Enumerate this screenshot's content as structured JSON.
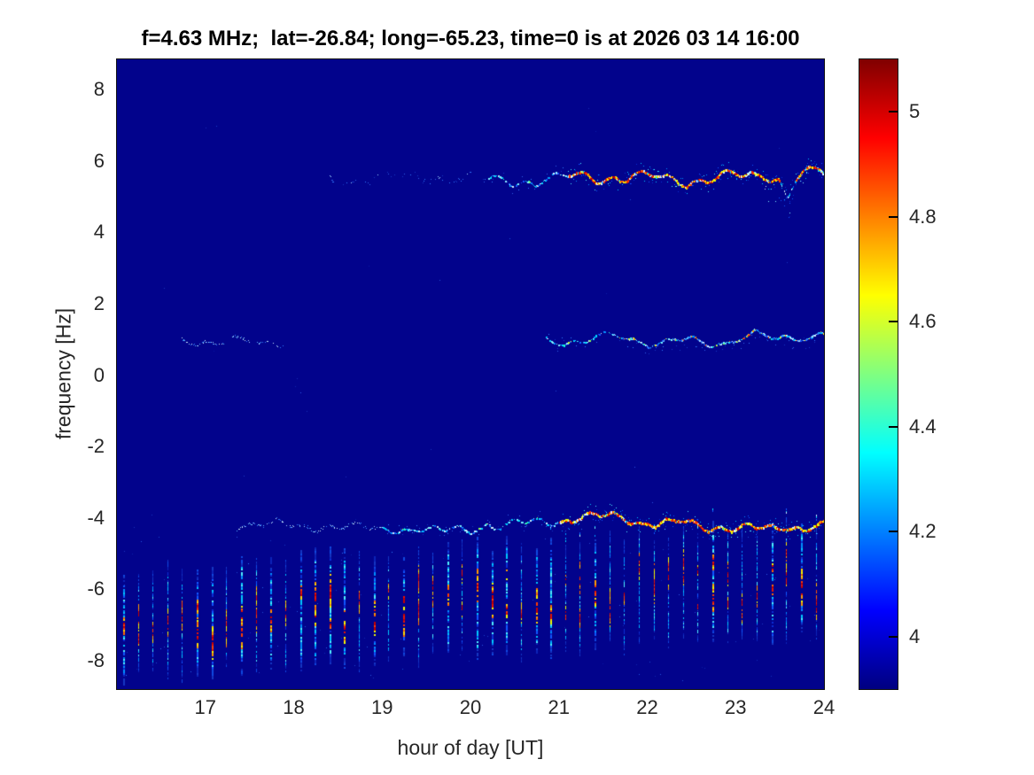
{
  "chart_data": {
    "type": "heatmap",
    "subtype": "doppler-spectrogram",
    "title": "f=4.63 MHz;  lat=-26.84; long=-65.23, time=0 is at 2026 03 14 16:00",
    "xlabel": "hour of day [UT]",
    "ylabel": "frequency [Hz]",
    "x_ticks": [
      17,
      18,
      19,
      20,
      21,
      22,
      23,
      24
    ],
    "y_ticks": [
      8,
      6,
      4,
      2,
      0,
      -2,
      -4,
      -6,
      -8
    ],
    "xlim": [
      16,
      24
    ],
    "ylim": [
      -8.83,
      8.83
    ],
    "grid": false,
    "colormap": "jet",
    "background_value": 3.9,
    "colorbar": {
      "ticks": [
        5,
        4.8,
        4.6,
        4.4,
        4.2,
        4
      ],
      "range": [
        3.9,
        5.1
      ],
      "position": "right"
    },
    "features": {
      "traces": [
        {
          "name": "upper sideband trace",
          "freq": 5.5,
          "start": 18.35,
          "end": 24,
          "a1": 0.13,
          "f1": 1.05,
          "a2": 0.08,
          "f2": 3.1,
          "phase": 0.8,
          "segments": [
            {
              "t0": 18.35,
              "t1": 20.2,
              "mode": "faint"
            },
            {
              "t0": 20.2,
              "t1": 21.1,
              "mode": "medium"
            },
            {
              "t0": 21.1,
              "t1": 24.0,
              "mode": "strong"
            }
          ],
          "dip": {
            "at": 23.58,
            "depth": 0.55,
            "width": 0.07
          }
        },
        {
          "name": "near-carrier trace",
          "freq": 0.93,
          "start": 16.73,
          "end": 24,
          "a1": 0.1,
          "f1": 1.2,
          "a2": 0.07,
          "f2": 2.9,
          "phase": 2.1,
          "segments": [
            {
              "t0": 16.73,
              "t1": 17.9,
              "mode": "faint2",
              "gaps": [
                [
                  17.22,
                  17.3
                ],
                [
                  17.5,
                  17.58
                ]
              ]
            },
            {
              "t0": 20.85,
              "t1": 21.6,
              "mode": "medium"
            },
            {
              "t0": 21.6,
              "t1": 24.0,
              "mode": "strongCool"
            }
          ]
        },
        {
          "name": "lower sideband trace",
          "freq": -4.2,
          "start": 17.35,
          "end": 24,
          "a1": 0.1,
          "f1": 1.1,
          "a2": 0.07,
          "f2": 3.4,
          "phase": 4.0,
          "segments": [
            {
              "t0": 17.35,
              "t1": 19.0,
              "mode": "faint2"
            },
            {
              "t0": 19.0,
              "t1": 21.0,
              "mode": "medium"
            },
            {
              "t0": 21.0,
              "t1": 24.0,
              "mode": "strong"
            }
          ]
        }
      ],
      "stripes": {
        "description": "periodic ~10-minute vertical speckle columns in lower band",
        "start": 16.07,
        "end": 24,
        "interval": 0.1667,
        "top_start": -5.45,
        "top_end": -4.1,
        "bottom_start": -8.55,
        "bottom_end": -7.35
      }
    }
  },
  "colors": {
    "figure_background": "#ffffff",
    "plot_background": "#02038c",
    "title_text": "#000000",
    "axis_text": "#262626",
    "axes_border": "#111111",
    "colorbar_gradient_bottom_to_top": [
      "#000080",
      "#0000ff",
      "#0080ff",
      "#00ffff",
      "#80ff80",
      "#ffff00",
      "#ff8000",
      "#ff0000",
      "#800000"
    ],
    "palettes": {
      "hot_core": [
        "#e81500",
        "#ff3d00",
        "#c60000"
      ],
      "hot_edge": [
        "#ff9a00",
        "#ffd900",
        "#f0ff00",
        "#ff6a00"
      ],
      "cool": [
        "#0b2fd4",
        "#1157ff",
        "#0090ff",
        "#00c8ff",
        "#4ff0ff"
      ],
      "dim": [
        "#0c23b8",
        "#1436c2",
        "#0f49e0"
      ],
      "dim2": [
        "#1436c2",
        "#2f5fe8",
        "#2f7bff"
      ],
      "soft": [
        "#2f7bff",
        "#58b6ff",
        "#9fd4ff",
        "#cfeeff"
      ],
      "bright": [
        "#1157ff",
        "#00a0ff",
        "#00d9ff",
        "#7df0ff",
        "#cfeeff"
      ],
      "mid": [
        "#2bffb0",
        "#8dff57",
        "#d6ff1e"
      ],
      "hotmix": [
        "#ff3d00",
        "#ff9a00",
        "#ffd900"
      ]
    }
  }
}
